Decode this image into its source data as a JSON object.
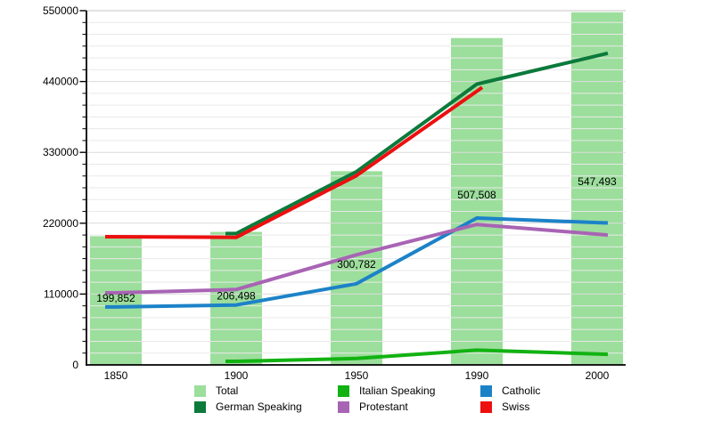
{
  "chart_data": {
    "type": "bar",
    "title": "",
    "xlabel": "",
    "ylabel": "",
    "categories": [
      "1850",
      "1900",
      "1950",
      "1990",
      "2000"
    ],
    "bars": {
      "name": "Total",
      "color": "#9CDE9C",
      "values": [
        199852,
        206498,
        300782,
        507508,
        547493
      ],
      "labels": [
        "199,852",
        "206,498",
        "300,782",
        "507,508",
        "547,493"
      ]
    },
    "lines": [
      {
        "name": "German Speaking",
        "color": "#0B7A3B",
        "values": [
          null,
          204000,
          300000,
          436000,
          480000
        ]
      },
      {
        "name": "Italian Speaking",
        "color": "#12B212",
        "values": [
          null,
          5500,
          10000,
          23000,
          17000
        ]
      },
      {
        "name": "Catholic",
        "color": "#1C82C8",
        "values": [
          90000,
          93000,
          126000,
          228000,
          221000
        ]
      },
      {
        "name": "Protestant",
        "color": "#A864B4",
        "values": [
          112000,
          117000,
          171000,
          218000,
          203000
        ]
      },
      {
        "name": "Swiss",
        "color": "#ED0F0F",
        "values": [
          199000,
          198000,
          294000,
          425000,
          null
        ]
      }
    ],
    "y_axis": {
      "min": 0,
      "max": 550000,
      "major_tick_step": 110000,
      "minor_divisions_per_major": 6,
      "tick_labels": [
        "0",
        "110000",
        "220000",
        "330000",
        "440000",
        "550000"
      ]
    },
    "x_axis": {
      "tick_labels": [
        "1850",
        "1900",
        "1950",
        "1990",
        "2000"
      ]
    },
    "grid": true,
    "legend_position": "bottom",
    "legend_rows": [
      [
        "Total",
        "Italian Speaking",
        "Catholic"
      ],
      [
        "German Speaking",
        "Protestant",
        "Swiss"
      ]
    ],
    "legend_colors": {
      "Total": "#9CDE9C",
      "German Speaking": "#0B7A3B",
      "Italian Speaking": "#12B212",
      "Protestant": "#A864B4",
      "Catholic": "#1C82C8",
      "Swiss": "#ED0F0F"
    }
  }
}
